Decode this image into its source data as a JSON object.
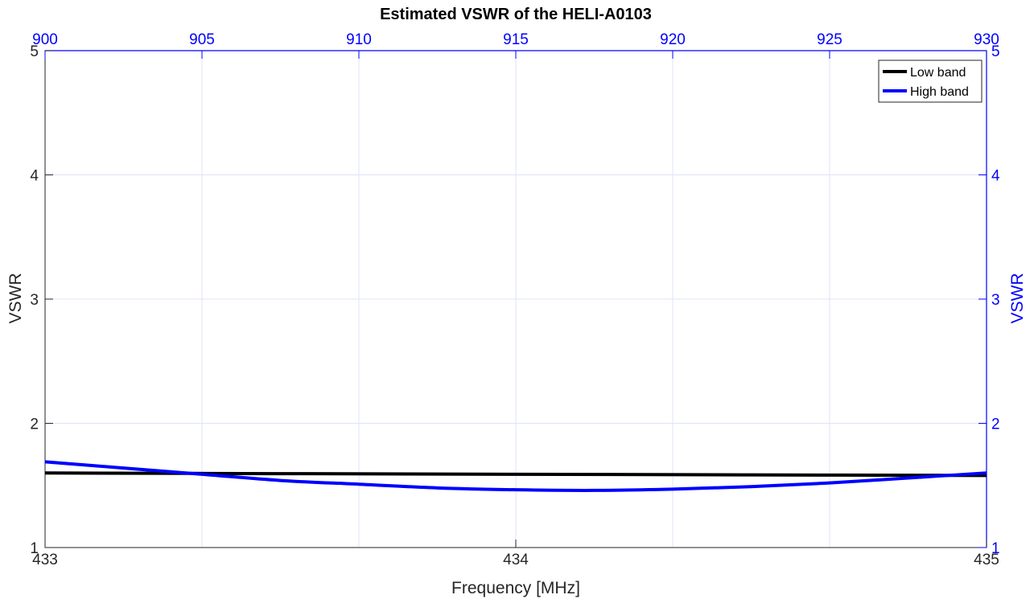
{
  "chart_data": {
    "type": "line",
    "title": "Estimated VSWR of the HELI-A0103",
    "xlabel": "Frequency [MHz]",
    "ylabel_left": "VSWR",
    "ylabel_right": "VSWR",
    "x_bottom": {
      "lim": [
        433,
        435
      ],
      "ticks": [
        "433",
        "434",
        "435"
      ],
      "color": "#262626"
    },
    "x_top": {
      "lim": [
        900,
        930
      ],
      "ticks": [
        "900",
        "905",
        "910",
        "915",
        "920",
        "925",
        "930"
      ],
      "color": "#0000ff"
    },
    "y": {
      "lim": [
        1,
        5
      ],
      "ticks": [
        "1",
        "2",
        "3",
        "4",
        "5"
      ]
    },
    "grid": true,
    "grid_color": "#dfe3f7",
    "legend": {
      "position": "top-right"
    },
    "series": [
      {
        "name": "Low band",
        "axis": "bottom",
        "color": "#000000",
        "x": [
          433,
          433.5,
          434,
          434.5,
          435
        ],
        "y": [
          1.6,
          1.595,
          1.59,
          1.585,
          1.58
        ]
      },
      {
        "name": "High band",
        "axis": "top",
        "color": "#0000ff",
        "x": [
          900,
          902.5,
          905,
          907.5,
          910,
          912.5,
          915,
          917.5,
          920,
          922.5,
          925,
          927.5,
          930
        ],
        "y": [
          1.69,
          1.64,
          1.59,
          1.54,
          1.51,
          1.48,
          1.465,
          1.46,
          1.47,
          1.49,
          1.52,
          1.56,
          1.6
        ]
      }
    ]
  }
}
